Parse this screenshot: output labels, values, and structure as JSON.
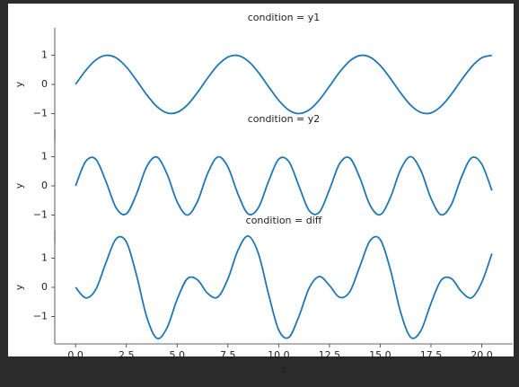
{
  "chart_data": [
    {
      "type": "line",
      "title": "condition = y1",
      "ylabel": "y",
      "color": "#1f77b4",
      "x": [
        0,
        0.5,
        1,
        1.5,
        2,
        2.5,
        3,
        3.5,
        4,
        4.5,
        5,
        5.5,
        6,
        6.5,
        7,
        7.5,
        8,
        8.5,
        9,
        9.5,
        10,
        10.5,
        11,
        11.5,
        12,
        12.5,
        13,
        13.5,
        14,
        14.5,
        15,
        15.5,
        16,
        16.5,
        17,
        17.5,
        18,
        18.5,
        19,
        19.5,
        20,
        20.5
      ],
      "values": [
        0,
        0.479,
        0.841,
        0.997,
        0.909,
        0.598,
        0.141,
        -0.351,
        -0.757,
        -0.978,
        -0.959,
        -0.706,
        -0.279,
        0.215,
        0.657,
        0.938,
        0.989,
        0.798,
        0.412,
        -0.075,
        -0.544,
        -0.88,
        -1.0,
        -0.875,
        -0.537,
        -0.066,
        0.42,
        0.804,
        0.991,
        0.935,
        0.65,
        0.207,
        -0.288,
        -0.712,
        -0.961,
        -0.978,
        -0.751,
        -0.342,
        0.15,
        0.605,
        0.913,
        0.997
      ],
      "xlim": [
        -1.025,
        21.525
      ],
      "ylim": [
        -1.94,
        1.94
      ],
      "yticks": [
        {
          "value": -1,
          "label": "−1"
        },
        0,
        1
      ]
    },
    {
      "type": "line",
      "title": "condition = y2",
      "ylabel": "y",
      "color": "#1f77b4",
      "x": [
        0,
        0.5,
        1,
        1.5,
        2,
        2.5,
        3,
        3.5,
        4,
        4.5,
        5,
        5.5,
        6,
        6.5,
        7,
        7.5,
        8,
        8.5,
        9,
        9.5,
        10,
        10.5,
        11,
        11.5,
        12,
        12.5,
        13,
        13.5,
        14,
        14.5,
        15,
        15.5,
        16,
        16.5,
        17,
        17.5,
        18,
        18.5,
        19,
        19.5,
        20,
        20.5
      ],
      "values": [
        0,
        0.841,
        0.909,
        0.141,
        -0.757,
        -0.959,
        -0.279,
        0.657,
        0.989,
        0.412,
        -0.544,
        -1.0,
        -0.537,
        0.42,
        0.991,
        0.65,
        -0.288,
        -0.961,
        -0.751,
        0.15,
        0.913,
        0.837,
        -0.009,
        -0.846,
        -0.906,
        -0.132,
        0.763,
        0.956,
        0.271,
        -0.664,
        -0.988,
        -0.404,
        0.551,
        1.0,
        0.529,
        -0.428,
        -0.992,
        -0.644,
        0.296,
        0.964,
        0.745,
        -0.159
      ],
      "xlim": [
        -1.025,
        21.525
      ],
      "ylim": [
        -1.94,
        1.94
      ],
      "yticks": [
        {
          "value": -1,
          "label": "−1"
        },
        0,
        1
      ]
    },
    {
      "type": "line",
      "title": "condition = diff",
      "ylabel": "y",
      "xlabel": "x",
      "color": "#1f77b4",
      "x": [
        0,
        0.5,
        1,
        1.5,
        2,
        2.5,
        3,
        3.5,
        4,
        4.5,
        5,
        5.5,
        6,
        6.5,
        7,
        7.5,
        8,
        8.5,
        9,
        9.5,
        10,
        10.5,
        11,
        11.5,
        12,
        12.5,
        13,
        13.5,
        14,
        14.5,
        15,
        15.5,
        16,
        16.5,
        17,
        17.5,
        18,
        18.5,
        19,
        19.5,
        20,
        20.5
      ],
      "values": [
        0,
        -0.362,
        -0.068,
        0.856,
        1.666,
        1.557,
        0.42,
        -1.008,
        -1.746,
        -1.39,
        -0.415,
        0.294,
        0.258,
        -0.205,
        -0.334,
        0.288,
        1.277,
        1.759,
        1.163,
        -0.225,
        -1.457,
        -1.717,
        -0.991,
        -0.029,
        0.369,
        0.066,
        -0.343,
        -0.152,
        0.72,
        1.599,
        1.638,
        0.611,
        -0.839,
        -1.712,
        -1.49,
        -0.55,
        0.241,
        0.302,
        -0.146,
        -0.359,
        0.168,
        1.156
      ],
      "xlim": [
        -1.025,
        21.525
      ],
      "ylim": [
        -1.94,
        1.94
      ],
      "yticks": [
        {
          "value": -1,
          "label": "−1"
        },
        0,
        1
      ],
      "xticks": [
        {
          "value": 0,
          "label": "0.0"
        },
        {
          "value": 2.5,
          "label": "2.5"
        },
        {
          "value": 5,
          "label": "5.0"
        },
        {
          "value": 7.5,
          "label": "7.5"
        },
        {
          "value": 10,
          "label": "10.0"
        },
        {
          "value": 12.5,
          "label": "12.5"
        },
        {
          "value": 15,
          "label": "15.0"
        },
        {
          "value": 17.5,
          "label": "17.5"
        },
        {
          "value": 20,
          "label": "20.0"
        }
      ]
    }
  ]
}
